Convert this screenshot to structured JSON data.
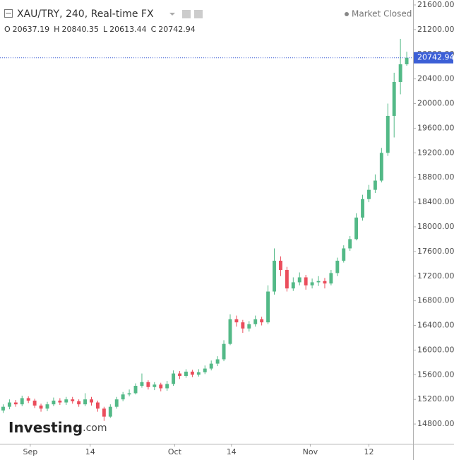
{
  "chart_data": {
    "type": "candlestick",
    "title": "XAU/TRY, 240, Real-time FX",
    "status": "Market Closed",
    "ohlc_labels": [
      "O",
      "H",
      "L",
      "C"
    ],
    "brand": "Investing",
    "brand_suffix": ".com",
    "up_color": "#53b987",
    "down_color": "#eb4d5c",
    "last_price_color": "#3c5fd6",
    "open": [
      15020,
      15080,
      15150,
      15120,
      15220,
      15180,
      15100,
      15050,
      15120,
      15180,
      15150,
      15200,
      15170,
      15120,
      15200,
      15150,
      15050,
      14920,
      15080,
      15200,
      15280,
      15300,
      15420,
      15480,
      15400,
      15440,
      15380,
      15450,
      15620,
      15580,
      15650,
      15600,
      15640,
      15700,
      15780,
      15850,
      16100,
      16500,
      16450,
      16350,
      16420,
      16500,
      16450,
      16950,
      17450,
      17300,
      17000,
      17100,
      17180,
      17050,
      17100,
      17120,
      17080,
      17250,
      17450,
      17650,
      17800,
      18150,
      18450,
      18600,
      18750,
      19200,
      19800,
      20350,
      20637.19
    ],
    "high": [
      15120,
      15200,
      15190,
      15260,
      15250,
      15210,
      15130,
      15160,
      15230,
      15220,
      15240,
      15240,
      15200,
      15300,
      15240,
      15180,
      15080,
      15120,
      15240,
      15320,
      15360,
      15460,
      15620,
      15510,
      15480,
      15470,
      15500,
      15670,
      15660,
      15690,
      15680,
      15690,
      15750,
      15830,
      15900,
      16160,
      16580,
      16560,
      16490,
      16470,
      16560,
      16540,
      17050,
      17650,
      17520,
      17350,
      17180,
      17260,
      17220,
      17160,
      17200,
      17170,
      17300,
      17500,
      17700,
      17850,
      18220,
      18520,
      18680,
      18850,
      19280,
      20000,
      20500,
      21050,
      20840.35
    ],
    "low": [
      14980,
      15040,
      15080,
      15090,
      15140,
      15060,
      15000,
      15010,
      15090,
      15110,
      15110,
      15130,
      15080,
      15090,
      15100,
      15000,
      14850,
      14900,
      15050,
      15170,
      15250,
      15280,
      15390,
      15360,
      15350,
      15330,
      15340,
      15420,
      15530,
      15550,
      15560,
      15570,
      15610,
      15670,
      15740,
      15820,
      16080,
      16380,
      16280,
      16300,
      16380,
      16400,
      16420,
      16900,
      17200,
      16950,
      16960,
      17050,
      16980,
      17000,
      17040,
      17000,
      17050,
      17200,
      17420,
      17610,
      17780,
      18100,
      18400,
      18550,
      18720,
      19150,
      19450,
      20150,
      20613.44
    ],
    "close": [
      15080,
      15150,
      15120,
      15220,
      15180,
      15100,
      15050,
      15120,
      15180,
      15150,
      15200,
      15170,
      15120,
      15200,
      15150,
      15050,
      14920,
      15080,
      15200,
      15280,
      15300,
      15420,
      15480,
      15400,
      15440,
      15380,
      15450,
      15620,
      15580,
      15650,
      15600,
      15640,
      15700,
      15780,
      15850,
      16100,
      16500,
      16450,
      16350,
      16420,
      16500,
      16450,
      16950,
      17450,
      17300,
      17000,
      17100,
      17180,
      17050,
      17100,
      17120,
      17080,
      17250,
      17450,
      17650,
      17800,
      18150,
      18450,
      18600,
      18750,
      19200,
      19800,
      20350,
      20637.19,
      20742.94
    ],
    "xlim": [
      -0.5,
      65
    ],
    "xticks": [
      {
        "value": 4.3,
        "label": "Sep"
      },
      {
        "value": 13.8,
        "label": "14"
      },
      {
        "value": 27.2,
        "label": "Oct"
      },
      {
        "value": 36.2,
        "label": "14"
      },
      {
        "value": 48.7,
        "label": "Nov"
      },
      {
        "value": 58,
        "label": "12"
      }
    ],
    "ylim": [
      14480,
      21680
    ],
    "yticks": [
      {
        "value": 14800,
        "label": "14800.00"
      },
      {
        "value": 15200,
        "label": "15200.00"
      },
      {
        "value": 15600,
        "label": "15600.00"
      },
      {
        "value": 16000,
        "label": "16000.00"
      },
      {
        "value": 16400,
        "label": "16400.00"
      },
      {
        "value": 16800,
        "label": "16800.00"
      },
      {
        "value": 17200,
        "label": "17200.00"
      },
      {
        "value": 17600,
        "label": "17600.00"
      },
      {
        "value": 18000,
        "label": "18000.00"
      },
      {
        "value": 18400,
        "label": "18400.00"
      },
      {
        "value": 18800,
        "label": "18800.00"
      },
      {
        "value": 19200,
        "label": "19200.00"
      },
      {
        "value": 19600,
        "label": "19600.00"
      },
      {
        "value": 20000,
        "label": "20000.00"
      },
      {
        "value": 20400,
        "label": "20400.00"
      },
      {
        "value": 20800,
        "label": "20800.00"
      },
      {
        "value": 21200,
        "label": "21200.00"
      },
      {
        "value": 21600,
        "label": "21600.00"
      }
    ],
    "grid": false
  }
}
